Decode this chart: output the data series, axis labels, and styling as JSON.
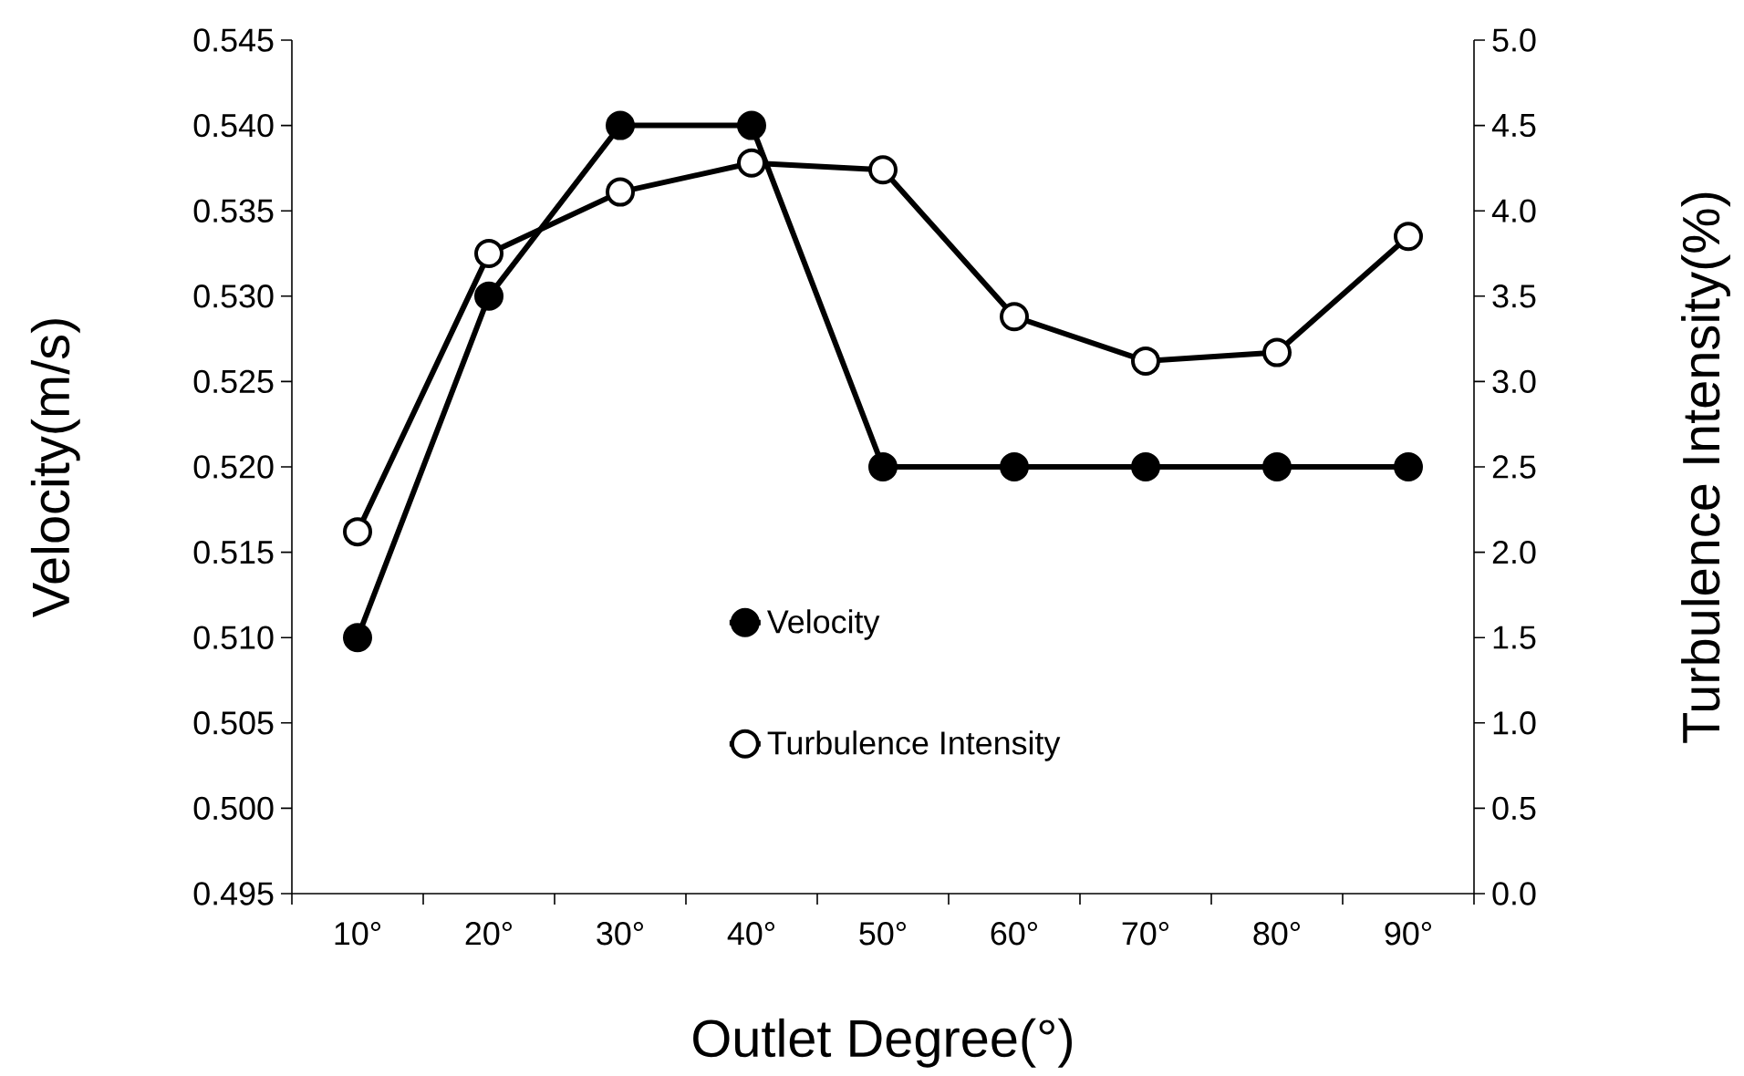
{
  "chart_data": {
    "type": "line",
    "xlabel": "Outlet Degree(°)",
    "ylabel": "Velocity(m/s)",
    "y2label": "Turbulence Intensity(%)",
    "categories": [
      "10°",
      "20°",
      "30°",
      "40°",
      "50°",
      "60°",
      "70°",
      "80°",
      "90°"
    ],
    "series": [
      {
        "name": "Velocity",
        "color": "#000000",
        "values": [
          0.51,
          0.53,
          0.54,
          0.54,
          0.52,
          0.52,
          0.52,
          0.52,
          0.52
        ]
      },
      {
        "name": "Turbulence Intensity",
        "color": "#ffffff",
        "axis": "y2",
        "values": [
          2.12,
          3.75,
          4.11,
          4.28,
          4.24,
          3.38,
          3.12,
          3.17,
          3.85
        ]
      }
    ],
    "ylim": [
      0.495,
      0.545
    ],
    "yticks": [
      0.495,
      {
        "value": 0.5,
        "label": "0.500"
      },
      0.505,
      {
        "value": 0.51,
        "label": "0.510"
      },
      0.515,
      {
        "value": 0.52,
        "label": "0.520"
      },
      0.525,
      {
        "value": 0.53,
        "label": "0.530"
      },
      0.535,
      {
        "value": 0.54,
        "label": "0.540"
      },
      0.545
    ],
    "y2lim": [
      0,
      5
    ],
    "y2ticks": [
      {
        "value": 0,
        "label": "0.0"
      },
      {
        "value": 0.5,
        "label": "0.5"
      },
      {
        "value": 1,
        "label": "1.0"
      },
      {
        "value": 1.5,
        "label": "1.5"
      },
      {
        "value": 2,
        "label": "2.0"
      },
      {
        "value": 2.5,
        "label": "2.5"
      },
      {
        "value": 3,
        "label": "3.0"
      },
      {
        "value": 3.5,
        "label": "3.5"
      },
      {
        "value": 4,
        "label": "4.0"
      },
      {
        "value": 4.5,
        "label": "4.5"
      },
      {
        "value": 5,
        "label": "5.0"
      }
    ],
    "grid": false,
    "legend": "bottom",
    "marker": "circle",
    "line_style": "solid"
  }
}
